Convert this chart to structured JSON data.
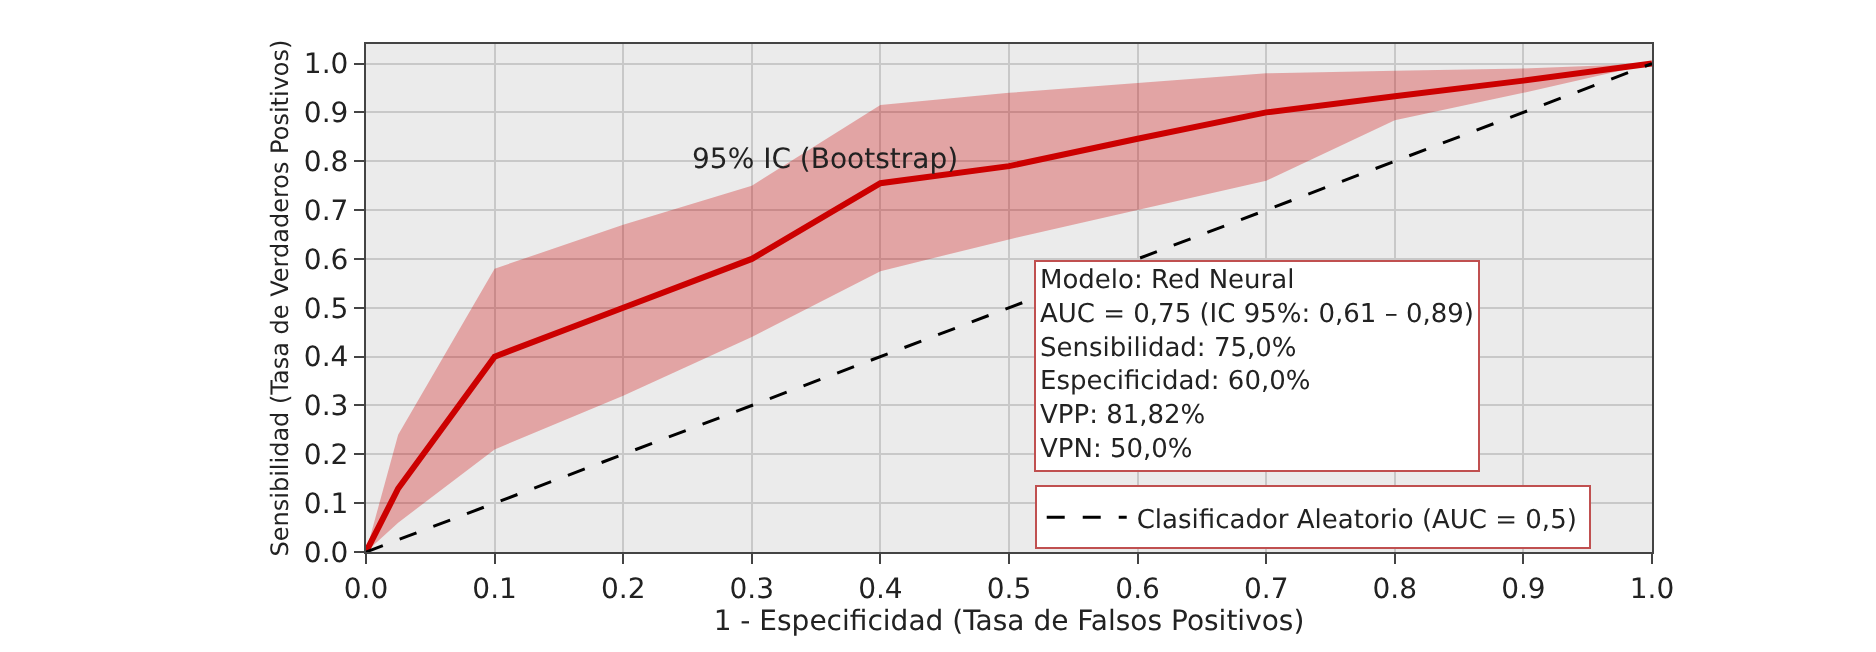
{
  "chart_data": {
    "type": "line",
    "xlabel": "1 - Especificidad (Tasa de Falsos Positivos)",
    "ylabel": "Sensibilidad (Tasa de Verdaderos Positivos)",
    "xlim": [
      0,
      1
    ],
    "ylim": [
      0,
      1.04
    ],
    "xticks": [
      {
        "value": 0,
        "label": "0.0"
      },
      0.1,
      0.2,
      0.3,
      0.4,
      0.5,
      0.6,
      0.7,
      0.8,
      0.9,
      {
        "value": 1,
        "label": "1.0"
      }
    ],
    "yticks": [
      {
        "value": 0,
        "label": "0.0"
      },
      0.1,
      0.2,
      0.3,
      0.4,
      0.5,
      0.6,
      0.7,
      0.8,
      0.9,
      {
        "value": 1,
        "label": "1.0"
      }
    ],
    "grid": true,
    "legend": "bottom right",
    "marker": "none",
    "series": [
      {
        "color": "#cc0000",
        "x": [
          0,
          0.025,
          0.1,
          0.2,
          0.3,
          0.4,
          0.5,
          0.6,
          0.7,
          0.8,
          0.9,
          1
        ],
        "values": [
          0,
          0.13,
          0.4,
          0.5,
          0.6,
          0.755,
          0.79,
          0.846,
          0.9,
          0.933,
          0.965,
          1
        ],
        "lower": [
          0,
          0.06,
          0.21,
          0.32,
          0.44,
          0.575,
          0.64,
          0.7,
          0.76,
          0.884,
          0.94,
          1
        ],
        "upper": [
          0,
          0.24,
          0.58,
          0.67,
          0.75,
          0.915,
          0.94,
          0.96,
          0.98,
          0.985,
          0.99,
          1
        ]
      },
      {
        "name": "Clasificador Aleatorio (AUC = 0,5)",
        "color": "#000000",
        "line_style": "dashed",
        "x": [
          0,
          1
        ],
        "values": [
          0,
          1
        ]
      }
    ],
    "annotations": [
      "95% IC (Bootstrap)",
      "Modelo: Red Neural\nAUC = 0,75 (IC 95%: 0,61 – 0,89)\nSensibilidad: 75,0%\nEspecificidad: 60,0%\nVPP: 81,82%\nVPN: 50,0%"
    ]
  }
}
